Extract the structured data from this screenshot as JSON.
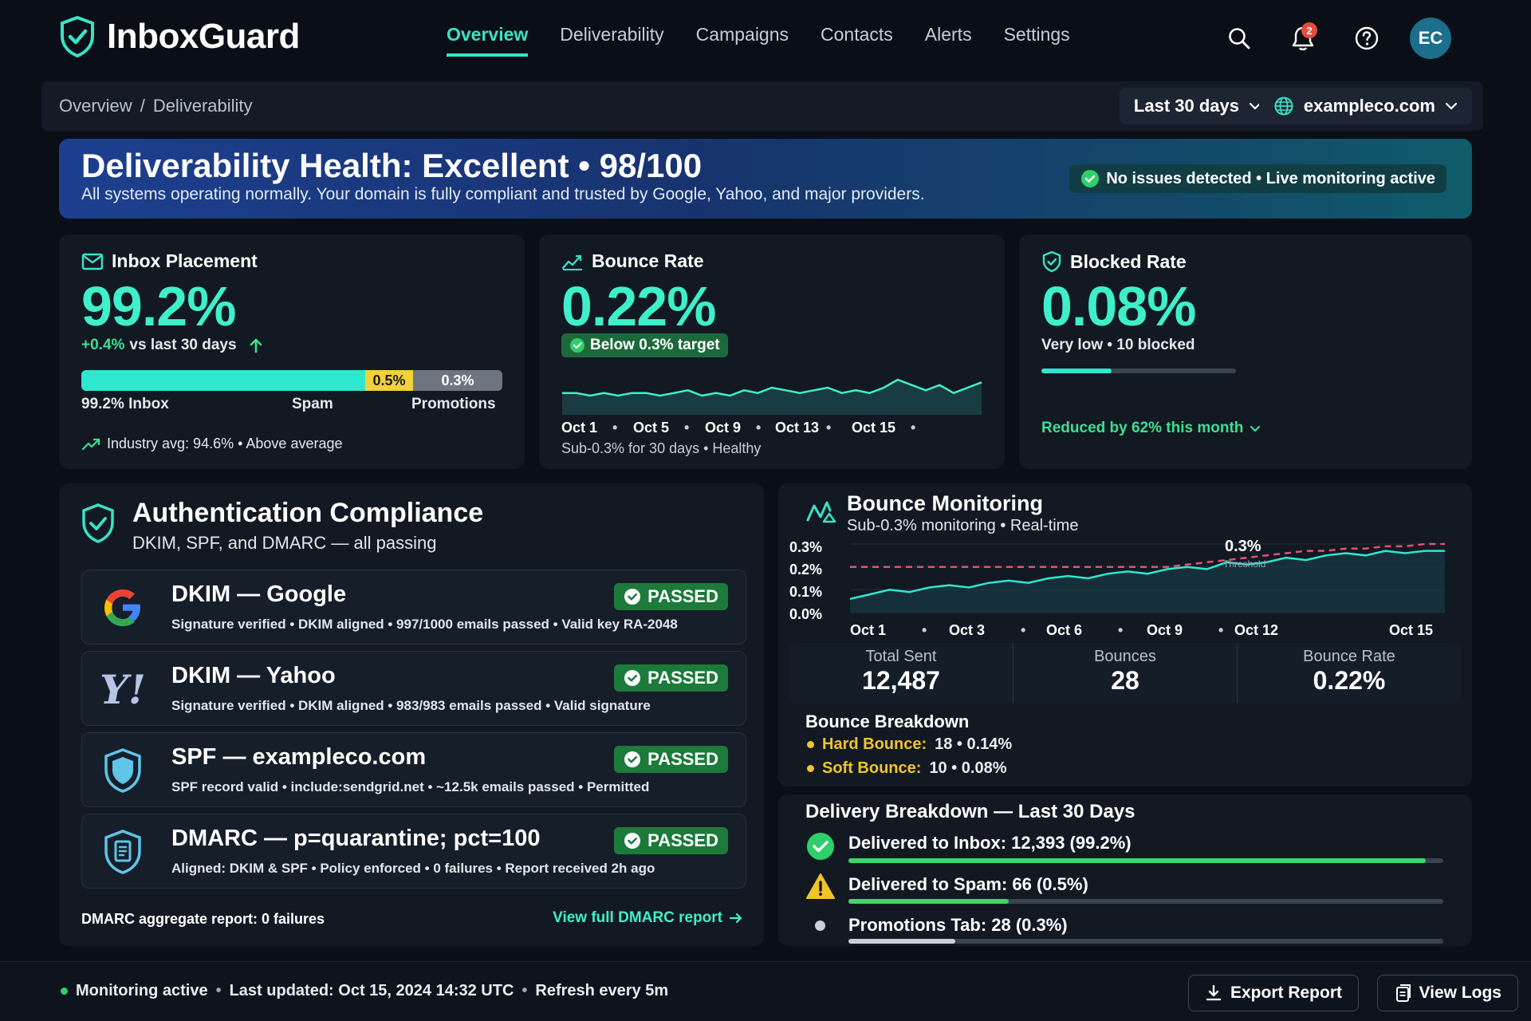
{
  "app": {
    "name": "InboxGuard"
  },
  "nav": {
    "items": [
      "Overview",
      "Deliverability",
      "Campaigns",
      "Contacts",
      "Alerts",
      "Settings"
    ],
    "active": "Overview"
  },
  "header": {
    "notification_count": "2",
    "avatar_initials": "EC"
  },
  "breadcrumb": {
    "root": "Overview",
    "sep": "/",
    "current": "Deliverability"
  },
  "filters": {
    "date_range": "Last 30 days",
    "domain": "exampleco.com"
  },
  "banner": {
    "title": "Deliverability Health: Excellent • 98/100",
    "subtitle": "All systems operating normally. Your domain is fully compliant and trusted by Google, Yahoo, and major providers.",
    "status": "No issues detected • Live monitoring active"
  },
  "inbox_card": {
    "title": "Inbox Placement",
    "value": "99.2%",
    "change": "+0.4%",
    "change_suffix": "vs last 30 days",
    "bar": {
      "inbox_pct": 99.2,
      "spam_pct": 0.5,
      "promo_pct": 0.3,
      "spam_label": "0.5%",
      "promo_label": "0.3%"
    },
    "legend": {
      "inbox": "99.2% Inbox",
      "spam": "Spam",
      "promo": "Promotions"
    },
    "industry": "Industry avg: 94.6% • Above average"
  },
  "bounce_card": {
    "title": "Bounce Rate",
    "value": "0.22%",
    "badge": "Below 0.3% target",
    "ticks": [
      "Oct 1",
      "Oct 5",
      "Oct 9",
      "Oct 13",
      "Oct 15"
    ],
    "footnote": "Sub-0.3% for 30 days • Healthy"
  },
  "blocked_card": {
    "title": "Blocked Rate",
    "value": "0.08%",
    "subtitle": "Very low • 10 blocked",
    "level": 0.36,
    "reduced": "Reduced by 62% this month"
  },
  "auth": {
    "title": "Authentication Compliance",
    "subtitle": "DKIM, SPF, and DMARC — all passing",
    "rows": [
      {
        "title": "DKIM — Google",
        "desc": "Signature verified • DKIM aligned • 997/1000 emails passed • Valid key RA-2048",
        "status": "PASSED"
      },
      {
        "title": "DKIM — Yahoo",
        "desc": "Signature verified • DKIM aligned • 983/983 emails passed • Valid signature",
        "status": "PASSED"
      },
      {
        "title": "SPF — exampleco.com",
        "desc": "SPF record valid • include:sendgrid.net • ~12.5k emails passed • Permitted",
        "status": "PASSED"
      },
      {
        "title": "DMARC — p=quarantine; pct=100",
        "desc": "Aligned: DKIM & SPF • Policy enforced • 0 failures • Report received 2h ago",
        "status": "PASSED"
      }
    ],
    "yahoo_logo": "Y!",
    "footer_note": "DMARC aggregate report: 0 failures",
    "footer_link": "View full DMARC report"
  },
  "bounce_monitor": {
    "title": "Bounce Monitoring",
    "subtitle": "Sub-0.3% monitoring • Real-time",
    "threshold_label": "0.3%",
    "threshold_tag": "Threshold",
    "stats": [
      {
        "label": "Total Sent",
        "value": "12,487"
      },
      {
        "label": "Bounces",
        "value": "28"
      },
      {
        "label": "Bounce Rate",
        "value": "0.22%"
      }
    ],
    "breakdown_title": "Bounce Breakdown",
    "hard_label": "Hard Bounce:",
    "hard_value": "18 • 0.14%",
    "soft_label": "Soft Bounce:",
    "soft_value": "10 • 0.08%"
  },
  "chart_data": [
    {
      "type": "area",
      "title": "Bounce Rate",
      "x_ticks": [
        "Oct 1",
        "Oct 5",
        "Oct 9",
        "Oct 13",
        "Oct 15"
      ],
      "values": [
        0.22,
        0.22,
        0.21,
        0.22,
        0.21,
        0.22,
        0.22,
        0.21,
        0.22,
        0.23,
        0.21,
        0.22,
        0.21,
        0.23,
        0.22,
        0.24,
        0.23,
        0.22,
        0.23,
        0.24,
        0.22,
        0.23,
        0.22,
        0.24,
        0.27,
        0.25,
        0.23,
        0.25,
        0.22,
        0.24,
        0.26
      ],
      "ylim": [
        0.0,
        0.3
      ]
    },
    {
      "type": "line",
      "title": "Bounce Monitoring",
      "x_ticks": [
        "Oct 1",
        "Oct 3",
        "Oct 6",
        "Oct 9",
        "Oct 12",
        "Oct 15"
      ],
      "y_ticks": [
        "0.3%",
        "0.2%",
        "0.1%",
        "0.0%"
      ],
      "ylim": [
        0.0,
        0.3
      ],
      "series": [
        {
          "values": [
            0.06,
            0.08,
            0.1,
            0.09,
            0.11,
            0.12,
            0.11,
            0.13,
            0.14,
            0.13,
            0.15,
            0.16,
            0.15,
            0.17,
            0.18,
            0.17,
            0.19,
            0.2,
            0.19,
            0.22,
            0.21,
            0.22,
            0.24,
            0.23,
            0.25,
            0.26,
            0.25,
            0.27,
            0.26,
            0.27,
            0.27
          ]
        },
        {
          "values": [
            0.2,
            0.2,
            0.2,
            0.2,
            0.2,
            0.2,
            0.2,
            0.2,
            0.2,
            0.2,
            0.2,
            0.2,
            0.2,
            0.2,
            0.2,
            0.2,
            0.2,
            0.21,
            0.22,
            0.23,
            0.24,
            0.25,
            0.26,
            0.27,
            0.27,
            0.28,
            0.28,
            0.29,
            0.29,
            0.3,
            0.3
          ],
          "style": "dashed"
        }
      ]
    }
  ],
  "delivery": {
    "title": "Delivery Breakdown — Last 30 Days",
    "rows": [
      {
        "label": "Delivered to Inbox: 12,393 (99.2%)",
        "fill": 0.97,
        "color": "#3ed66a"
      },
      {
        "label": "Delivered to Spam: 66 (0.5%)",
        "fill": 0.27,
        "color": "#3ed66a"
      },
      {
        "label": "Promotions Tab: 28 (0.3%)",
        "fill": 0.18,
        "color": "#c9d0d8"
      }
    ]
  },
  "footer": {
    "status": "Monitoring active",
    "updated": "Last updated: Oct 15, 2024 14:32 UTC",
    "refresh": "Refresh every 5m",
    "export": "Export Report",
    "logs": "View Logs"
  }
}
